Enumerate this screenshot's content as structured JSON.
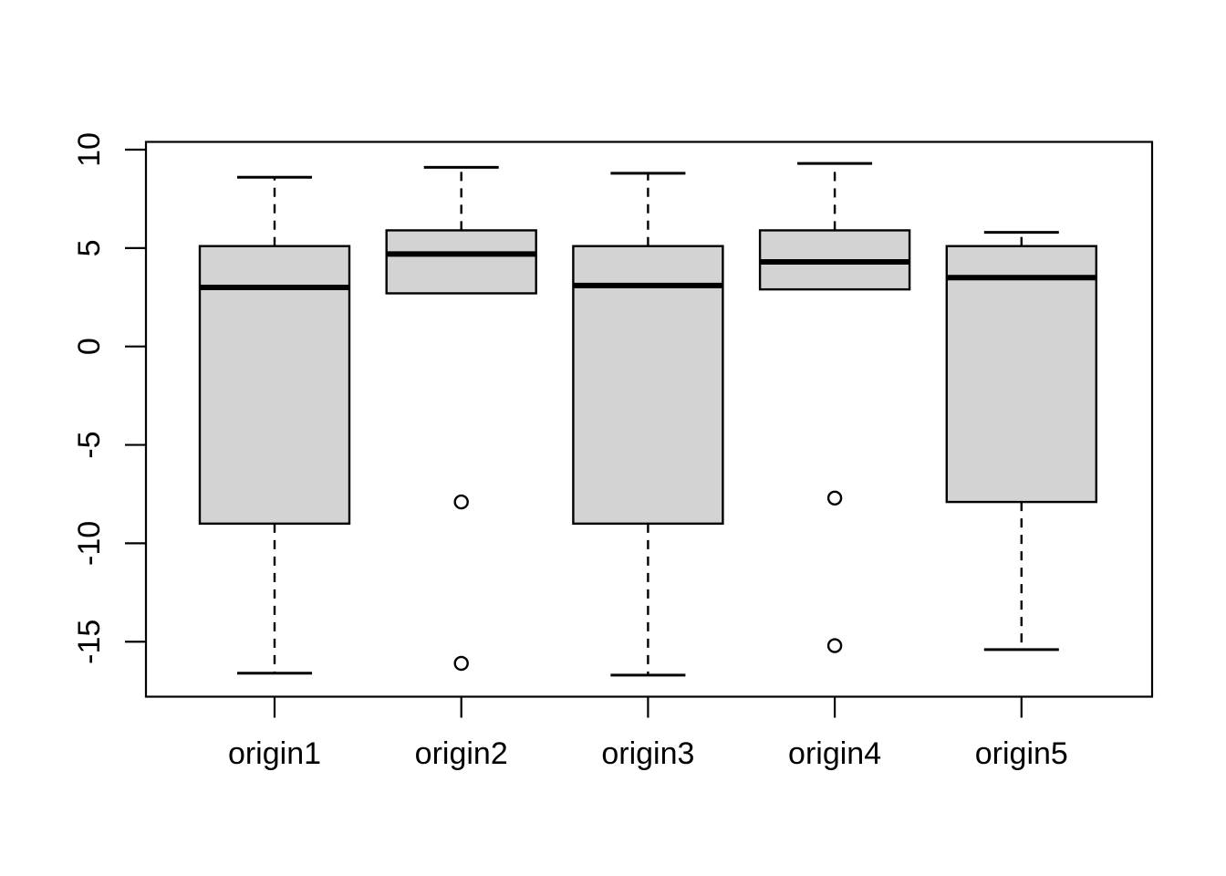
{
  "figure": {
    "background": "#ffffff",
    "title": ""
  },
  "chart_data": {
    "type": "boxplot",
    "orientation": "vertical",
    "title": "",
    "xlabel": "",
    "ylabel": "",
    "grid": false,
    "legend": null,
    "categories": [
      "origin1",
      "origin2",
      "origin3",
      "origin4",
      "origin5"
    ],
    "series": [
      {
        "name": "origin1",
        "whisker_low": -16.6,
        "q1": -9.0,
        "median": 3.0,
        "q3": 5.1,
        "whisker_high": 8.6,
        "outliers": []
      },
      {
        "name": "origin2",
        "whisker_low": 2.7,
        "q1": 2.7,
        "median": 4.7,
        "q3": 5.9,
        "whisker_high": 9.1,
        "outliers": [
          -7.9,
          -16.1
        ]
      },
      {
        "name": "origin3",
        "whisker_low": -16.7,
        "q1": -9.0,
        "median": 3.1,
        "q3": 5.1,
        "whisker_high": 8.8,
        "outliers": []
      },
      {
        "name": "origin4",
        "whisker_low": 2.9,
        "q1": 2.9,
        "median": 4.3,
        "q3": 5.9,
        "whisker_high": 9.3,
        "outliers": [
          -7.7,
          -15.2
        ]
      },
      {
        "name": "origin5",
        "whisker_low": -15.4,
        "q1": -7.9,
        "median": 3.5,
        "q3": 5.1,
        "whisker_high": 5.8,
        "outliers": []
      }
    ],
    "y_axis": {
      "ticks": [
        10,
        5,
        0,
        -5,
        -10,
        -15
      ],
      "tick_labels": [
        "10",
        "5",
        "0",
        "-5",
        "-10",
        "-15"
      ],
      "range": [
        -17.8,
        10.4
      ]
    },
    "x_axis": {
      "tick_labels": [
        "origin1",
        "origin2",
        "origin3",
        "origin4",
        "origin5"
      ]
    },
    "style": {
      "box_fill": "#d3d3d3",
      "line_color": "#000000",
      "background": "#ffffff",
      "whisker_style": "dashed",
      "outlier_shape": "open-circle"
    }
  }
}
